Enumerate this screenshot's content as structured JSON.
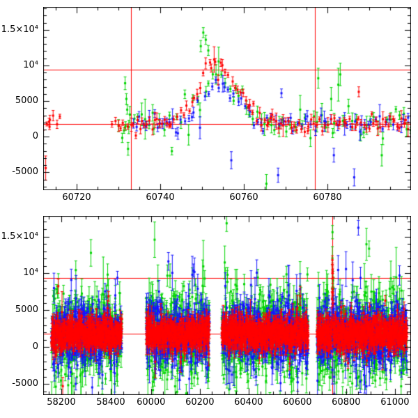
{
  "figure": {
    "background": "#ffffff",
    "frame_color": "#000000"
  },
  "colors": {
    "red": "#ff0000",
    "green": "#00d400",
    "blue": "#1414ff",
    "reference": "#ff0000"
  },
  "chart_data": [
    {
      "type": "scatter",
      "panel": "top",
      "title": "",
      "xlabel": "",
      "ylabel": "",
      "xlim": [
        60712,
        60800
      ],
      "ylim": [
        -7500,
        18200
      ],
      "x_knots": [
        [
          60712,
          0
        ],
        [
          60800,
          1
        ]
      ],
      "xticks": [
        {
          "v": 60720,
          "label": "60720"
        },
        {
          "v": 60740,
          "label": "60740"
        },
        {
          "v": 60760,
          "label": "60760"
        },
        {
          "v": 60780,
          "label": "60780"
        }
      ],
      "x_minor_step": 5,
      "yticks": [
        {
          "v": -5000,
          "label": "-5000"
        },
        {
          "v": 0,
          "label": "0"
        },
        {
          "v": 5000,
          "label": "5000"
        },
        {
          "v": 10000,
          "label": "10⁴"
        },
        {
          "v": 15000,
          "label": "1.5×10⁴"
        }
      ],
      "y_minor_step": 1000,
      "reference_lines": {
        "horizontal": [
          9400,
          1800
        ],
        "vertical": [
          60733,
          60777
        ]
      },
      "seed": 7,
      "series": [
        {
          "name": "green-band",
          "color_key": "green",
          "clumps": [
            [
              60730,
              60800
            ]
          ],
          "step": 0.85,
          "jitter": 0.5,
          "baseline": 1750,
          "sigma": 1200,
          "err_base": 350,
          "err_rand": 550,
          "outlier_frac": 0.07,
          "outlier_scale": 2.4,
          "flare": {
            "center": 60753.5,
            "sigma_rise": 3.5,
            "sigma_decay": 5.0,
            "amp": 7000
          }
        },
        {
          "name": "blue-band",
          "color_key": "blue",
          "clumps": [
            [
              60733,
              60800
            ]
          ],
          "step": 0.8,
          "jitter": 0.5,
          "baseline": 1800,
          "sigma": 700,
          "err_base": 300,
          "err_rand": 400,
          "outlier_frac": 0.05,
          "outlier_scale": 2.5,
          "flare": {
            "center": 60753.5,
            "sigma_rise": 3.5,
            "sigma_decay": 5.2,
            "amp": 5400
          }
        },
        {
          "name": "red-band",
          "color_key": "red",
          "clumps": [
            [
              60712,
              60716
            ],
            [
              60728,
              60800
            ]
          ],
          "step": 0.6,
          "jitter": 0.4,
          "baseline": 1850,
          "sigma": 520,
          "err_base": 280,
          "err_rand": 350,
          "outlier_frac": 0.04,
          "outlier_scale": 2.2,
          "flare": {
            "center": 60753.2,
            "sigma_rise": 3.8,
            "sigma_decay": 5.2,
            "amp": 8700
          }
        }
      ],
      "special_points": [
        {
          "x": 60712.6,
          "y": -4400,
          "err": 1700,
          "c": "red"
        },
        {
          "x": 60713.4,
          "y": 2100,
          "err": 500,
          "c": "red"
        },
        {
          "x": 60731.6,
          "y": 7500,
          "err": 900,
          "c": "green"
        },
        {
          "x": 60731.9,
          "y": 5300,
          "err": 750,
          "c": "green"
        },
        {
          "x": 60732.1,
          "y": 3800,
          "err": 650,
          "c": "green"
        },
        {
          "x": 60731.7,
          "y": 1500,
          "err": 600,
          "c": "green"
        },
        {
          "x": 60732.3,
          "y": -1700,
          "err": 900,
          "c": "green"
        },
        {
          "x": 60749.7,
          "y": 12700,
          "err": 800,
          "c": "green"
        },
        {
          "x": 60750.3,
          "y": 14600,
          "err": 700,
          "c": "green"
        },
        {
          "x": 60750.9,
          "y": 13600,
          "err": 650,
          "c": "green"
        },
        {
          "x": 60751.5,
          "y": 12100,
          "err": 700,
          "c": "green"
        },
        {
          "x": 60757.0,
          "y": -3300,
          "err": 1200,
          "c": "blue"
        },
        {
          "x": 60765.4,
          "y": -6600,
          "err": 1300,
          "c": "green"
        },
        {
          "x": 60768.2,
          "y": -5400,
          "err": 1000,
          "c": "blue"
        },
        {
          "x": 60769.0,
          "y": 6100,
          "err": 600,
          "c": "blue"
        },
        {
          "x": 60777.8,
          "y": 8200,
          "err": 1400,
          "c": "green"
        },
        {
          "x": 60780.9,
          "y": 5300,
          "err": 1600,
          "c": "green"
        },
        {
          "x": 60782.6,
          "y": 7300,
          "err": 2300,
          "c": "green"
        },
        {
          "x": 60786.4,
          "y": -5700,
          "err": 1200,
          "c": "blue"
        },
        {
          "x": 60787.5,
          "y": 6300,
          "err": 700,
          "c": "red"
        },
        {
          "x": 60793.0,
          "y": -2600,
          "err": 1500,
          "c": "green"
        }
      ]
    },
    {
      "type": "scatter",
      "panel": "bottom",
      "title": "",
      "xlabel": "",
      "ylabel": "",
      "xlim": [
        58127,
        61066
      ],
      "ylim": [
        -6500,
        17800
      ],
      "x_knots": [
        [
          58127,
          0
        ],
        [
          58450,
          0.2173
        ],
        [
          59950,
          0.26
        ],
        [
          61066,
          1
        ]
      ],
      "xticks": [
        {
          "v": 58200,
          "label": "58200"
        },
        {
          "v": 58400,
          "label": "58400"
        },
        {
          "v": 60000,
          "label": "60000"
        },
        {
          "v": 60200,
          "label": "60200"
        },
        {
          "v": 60400,
          "label": "60400"
        },
        {
          "v": 60600,
          "label": "60600"
        },
        {
          "v": 60800,
          "label": "60800"
        },
        {
          "v": 61000,
          "label": "61000"
        }
      ],
      "x_minor_step": 50,
      "x_minor_skip": [
        58460,
        59940
      ],
      "yticks": [
        {
          "v": -5000,
          "label": "-5000"
        },
        {
          "v": 0,
          "label": "0"
        },
        {
          "v": 5000,
          "label": "5000"
        },
        {
          "v": 10000,
          "label": "10⁴"
        },
        {
          "v": 15000,
          "label": "1.5×10⁴"
        }
      ],
      "y_minor_step": 1000,
      "reference_lines": {
        "horizontal": [
          9400,
          1800
        ],
        "vertical": [
          60743
        ]
      },
      "seed": 99,
      "series": [
        {
          "name": "green-band",
          "color_key": "green",
          "clumps": [
            [
              58160,
              58445
            ],
            [
              59980,
              60240
            ],
            [
              60290,
              60645
            ],
            [
              60680,
              61050
            ]
          ],
          "step": 0.8,
          "jitter": 0.4,
          "baseline": 1800,
          "sigma": 2700,
          "err_base": 550,
          "err_rand": 900,
          "outlier_frac": 0.1,
          "outlier_scale": 2.1,
          "flare": {
            "center": 60744,
            "sigma_rise": 1.5,
            "sigma_decay": 2.2,
            "amp": 5200
          }
        },
        {
          "name": "blue-band",
          "color_key": "blue",
          "clumps": [
            [
              58160,
              58445
            ],
            [
              59980,
              60240
            ],
            [
              60290,
              60645
            ],
            [
              60680,
              61050
            ]
          ],
          "step": 0.7,
          "jitter": 0.4,
          "baseline": 1800,
          "sigma": 1900,
          "err_base": 450,
          "err_rand": 700,
          "outlier_frac": 0.08,
          "outlier_scale": 2.1,
          "flare": {
            "center": 60744,
            "sigma_rise": 1.5,
            "sigma_decay": 2.2,
            "amp": 3600
          }
        },
        {
          "name": "red-band",
          "color_key": "red",
          "clumps": [
            [
              58160,
              58445
            ],
            [
              59980,
              60240
            ],
            [
              60290,
              60645
            ],
            [
              60680,
              61050
            ]
          ],
          "step": 0.55,
          "jitter": 0.35,
          "baseline": 1800,
          "sigma": 1050,
          "err_base": 330,
          "err_rand": 480,
          "outlier_frac": 0.05,
          "outlier_scale": 2.4,
          "flare": {
            "center": 60744,
            "sigma_rise": 1.3,
            "sigma_decay": 2.0,
            "amp": 7800
          }
        }
      ],
      "special_points": [
        {
          "x": 60744.0,
          "y": 15600,
          "err": 900,
          "c": "green"
        },
        {
          "x": 60743.5,
          "y": 11800,
          "err": 600,
          "c": "red"
        },
        {
          "x": 60744.5,
          "y": 10500,
          "err": 500,
          "c": "red"
        },
        {
          "x": 60310.0,
          "y": 16800,
          "err": 1100,
          "c": "green"
        },
        {
          "x": 60850.0,
          "y": 16200,
          "err": 1000,
          "c": "blue"
        }
      ]
    }
  ]
}
